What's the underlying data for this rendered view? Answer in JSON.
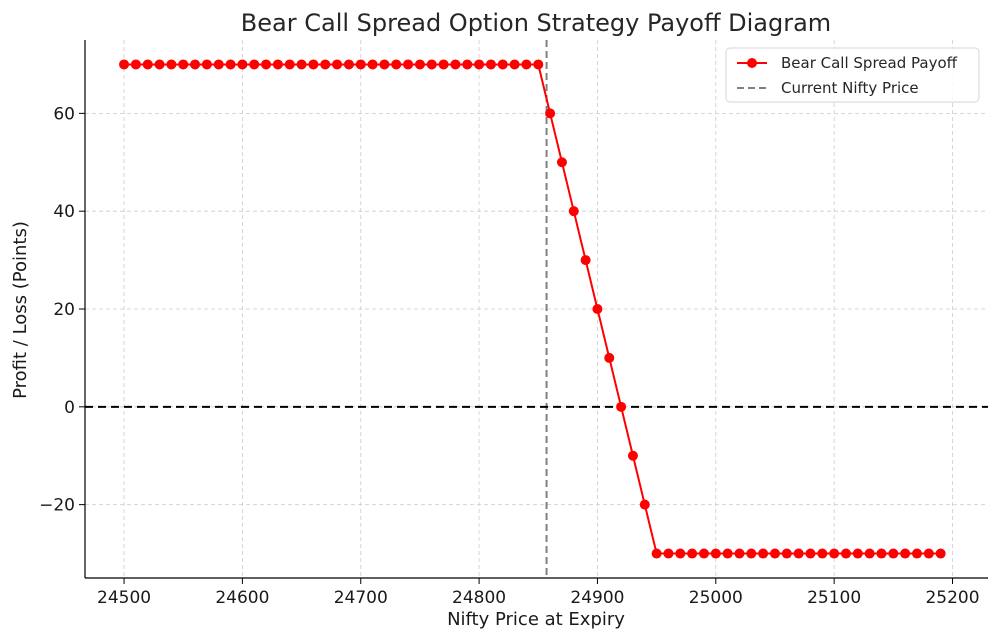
{
  "chart_data": {
    "type": "line",
    "title": "Bear Call Spread Option Strategy Payoff Diagram",
    "xlabel": "Nifty Price at Expiry",
    "ylabel": "Profit / Loss (Points)",
    "xlim": [
      24467,
      25230
    ],
    "ylim": [
      -35,
      75
    ],
    "xticks": [
      24500,
      24600,
      24700,
      24800,
      24900,
      25000,
      25100,
      25200
    ],
    "yticks": [
      -20,
      0,
      20,
      40,
      60
    ],
    "ytick_labels": [
      "−20",
      "0",
      "20",
      "40",
      "60"
    ],
    "grid": true,
    "legend_position": "top-right",
    "series": [
      {
        "name": "Bear Call Spread Payoff",
        "color": "#ff0000",
        "marker": "circle",
        "x": [
          24500,
          24510,
          24520,
          24530,
          24540,
          24550,
          24560,
          24570,
          24580,
          24590,
          24600,
          24610,
          24620,
          24630,
          24640,
          24650,
          24660,
          24670,
          24680,
          24690,
          24700,
          24710,
          24720,
          24730,
          24740,
          24750,
          24760,
          24770,
          24780,
          24790,
          24800,
          24810,
          24820,
          24830,
          24840,
          24850,
          24860,
          24870,
          24880,
          24890,
          24900,
          24910,
          24920,
          24930,
          24940,
          24950,
          24960,
          24970,
          24980,
          24990,
          25000,
          25010,
          25020,
          25030,
          25040,
          25050,
          25060,
          25070,
          25080,
          25090,
          25100,
          25110,
          25120,
          25130,
          25140,
          25150,
          25160,
          25170,
          25180,
          25190
        ],
        "y": [
          70,
          70,
          70,
          70,
          70,
          70,
          70,
          70,
          70,
          70,
          70,
          70,
          70,
          70,
          70,
          70,
          70,
          70,
          70,
          70,
          70,
          70,
          70,
          70,
          70,
          70,
          70,
          70,
          70,
          70,
          70,
          70,
          70,
          70,
          70,
          70,
          60,
          50,
          40,
          30,
          20,
          10,
          0,
          -10,
          -20,
          -30,
          -30,
          -30,
          -30,
          -30,
          -30,
          -30,
          -30,
          -30,
          -30,
          -30,
          -30,
          -30,
          -30,
          -30,
          -30,
          -30,
          -30,
          -30,
          -30,
          -30,
          -30,
          -30,
          -30,
          -30
        ]
      }
    ],
    "reference_lines": [
      {
        "orientation": "vertical",
        "name": "Current Nifty Price",
        "value": 24857,
        "color": "#808080",
        "style": "dashed"
      },
      {
        "orientation": "horizontal",
        "value": 0,
        "color": "#000000",
        "style": "dashed"
      }
    ]
  }
}
